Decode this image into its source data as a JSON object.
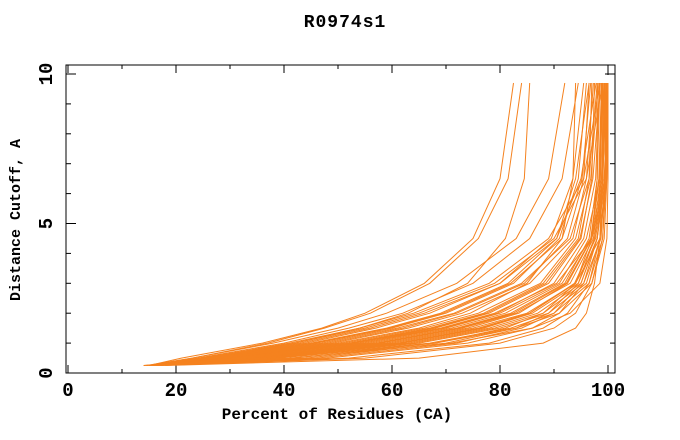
{
  "window": {
    "title": "R0974s1 accuracy plot"
  },
  "colors": {
    "background": "#FFFFFF",
    "line": "#F5821F",
    "axis": "#000000",
    "text": "#000000"
  },
  "chart_data": {
    "type": "line",
    "title": "R0974s1",
    "xlabel": "Percent of Residues (CA)",
    "ylabel": "Distance Cutoff, A",
    "xlim": [
      0,
      100
    ],
    "ylim": [
      0,
      10
    ],
    "grid": false,
    "legend": "none",
    "x_major_ticks": [
      0,
      20,
      40,
      60,
      80,
      100
    ],
    "x_minor_ticks": [
      10,
      30,
      50,
      70,
      90
    ],
    "x_tick_labels": [
      "0",
      "20",
      "40",
      "60",
      "80",
      "100"
    ],
    "y_major_ticks": [
      0,
      5,
      10
    ],
    "y_minor_ticks": [
      1,
      2,
      3,
      4,
      6,
      7,
      8,
      9
    ],
    "y_tick_labels": [
      "0",
      "5",
      "10"
    ],
    "y_tick_labels_rotated": true,
    "series_color": "#F5821F",
    "series_note": "each series = one model curve; x = percent of residues (CA) under the distance cutoff sampled at shared y_anchors (Angstroms)",
    "y_anchors": [
      0.25,
      0.5,
      1,
      1.5,
      2,
      3,
      4.5,
      6.5,
      9.7
    ],
    "series": [
      {
        "x": [
          15,
          21,
          36,
          47,
          55,
          66,
          75,
          80,
          82.5
        ]
      },
      {
        "x": [
          15,
          23,
          37,
          47.5,
          56,
          67,
          76,
          81.5,
          84
        ]
      },
      {
        "x": [
          16,
          26,
          42,
          54,
          63,
          74,
          81,
          84.5,
          85.5
        ]
      },
      {
        "x": [
          15,
          24,
          40,
          52,
          62,
          75,
          85.5,
          91.5,
          94.5
        ]
      },
      {
        "x": [
          15,
          27,
          46,
          60,
          70,
          82.5,
          91,
          94.5,
          96
        ]
      },
      {
        "x": [
          15,
          30,
          52,
          67,
          77,
          88,
          94.5,
          96.5,
          97
        ]
      },
      {
        "x": [
          15,
          29,
          50,
          65,
          74.5,
          85,
          91.5,
          93.5,
          94
        ]
      },
      {
        "x": [
          15,
          27.5,
          47,
          61,
          71.5,
          84,
          93,
          96.5,
          98
        ]
      },
      {
        "x": [
          15,
          25,
          41,
          54,
          64,
          78,
          89,
          95.5,
          98.5
        ]
      },
      {
        "x": [
          14.5,
          23,
          38,
          50,
          59,
          72,
          83,
          89,
          92
        ]
      },
      {
        "x": [
          15,
          26,
          44,
          57,
          67,
          80,
          89.5,
          93.5,
          95.5
        ]
      },
      {
        "x": [
          15,
          28,
          48,
          62,
          72,
          84.5,
          92.5,
          95.5,
          96.5
        ]
      },
      {
        "x": [
          16,
          31,
          53,
          68,
          78,
          89,
          95,
          97,
          97.5
        ]
      },
      {
        "x": [
          15,
          24.5,
          42,
          55,
          65,
          79,
          90,
          96,
          99
        ]
      },
      {
        "x": [
          15,
          26.5,
          45,
          59,
          69,
          81.5,
          90.5,
          94,
          96.5
        ]
      },
      {
        "x": [
          15,
          28.5,
          49,
          63,
          73,
          85.5,
          93.5,
          96,
          97.3
        ]
      },
      {
        "x": [
          15,
          25.5,
          43,
          56,
          66,
          80,
          90.5,
          95,
          97.8
        ]
      },
      {
        "x": [
          16,
          29.5,
          51,
          66,
          76,
          87.5,
          94,
          96.8,
          98.2
        ]
      },
      {
        "x": [
          15,
          27,
          45.5,
          59.5,
          69.5,
          82,
          91.5,
          95.2,
          96.8
        ]
      },
      {
        "x": [
          14,
          31.5,
          54,
          69.5,
          79.5,
          90,
          95.5,
          97.7,
          98.4
        ]
      },
      {
        "x": [
          15,
          35.5,
          61.5,
          76.5,
          85.5,
          93.8,
          97.7,
          99.1,
          99.4
        ]
      },
      {
        "x": [
          16,
          33,
          57.5,
          72.5,
          82.5,
          92.3,
          96.9,
          98.4,
          98.9
        ]
      },
      {
        "x": [
          15,
          30,
          52.5,
          67.5,
          77.5,
          88.5,
          94.8,
          97.2,
          98.6
        ]
      },
      {
        "x": [
          15,
          33,
          59,
          74,
          83.5,
          92.5,
          97,
          98,
          98
        ]
      },
      {
        "x": [
          15,
          37,
          65,
          80,
          89,
          96,
          98.5,
          99,
          99
        ]
      },
      {
        "x": [
          15,
          41,
          71,
          86,
          93,
          98.5,
          99.8,
          100,
          100
        ]
      },
      {
        "x": [
          15,
          34,
          60,
          75,
          85,
          94,
          98.5,
          99.5,
          99.5
        ]
      },
      {
        "x": [
          15,
          30.5,
          53,
          69,
          79,
          90.5,
          97,
          99.5,
          100
        ]
      },
      {
        "x": [
          16,
          35,
          62,
          77,
          86,
          94.5,
          98,
          99,
          99.5
        ]
      },
      {
        "x": [
          15,
          32,
          57,
          72,
          82,
          92,
          96.5,
          98,
          98.5
        ]
      },
      {
        "x": [
          14,
          36,
          63,
          78,
          87,
          95,
          98,
          99,
          99.3
        ]
      },
      {
        "x": [
          15,
          38,
          67,
          82,
          90,
          96.5,
          99,
          99.5,
          99.8
        ]
      },
      {
        "x": [
          15,
          31,
          55,
          70,
          80,
          91,
          96,
          98.5,
          99
        ]
      },
      {
        "x": [
          16,
          34.5,
          61,
          76,
          85.5,
          94,
          97.5,
          98.8,
          99.2
        ]
      },
      {
        "x": [
          15,
          39,
          68,
          83,
          91,
          97,
          99.3,
          99.8,
          100
        ]
      },
      {
        "x": [
          15,
          33.5,
          58,
          73,
          83,
          93,
          97.3,
          98.6,
          99
        ]
      },
      {
        "x": [
          14.5,
          36.5,
          64,
          79,
          88,
          95.5,
          98.7,
          99.4,
          99.7
        ]
      },
      {
        "x": [
          15,
          32.5,
          56,
          71,
          81,
          91.5,
          96.8,
          98.3,
          98.8
        ]
      },
      {
        "x": [
          17,
          55,
          80,
          90,
          94,
          97,
          99,
          99.7,
          100
        ]
      },
      {
        "x": [
          16,
          48,
          74,
          86,
          91,
          95.5,
          98,
          99.5,
          100
        ]
      },
      {
        "x": [
          16,
          44,
          70,
          83,
          89,
          94.5,
          97.5,
          99,
          99.8
        ]
      },
      {
        "x": [
          17,
          52,
          78,
          88,
          92.5,
          96.5,
          98.5,
          99.7,
          100
        ]
      },
      {
        "x": [
          16,
          46,
          72,
          84,
          90,
          95,
          98,
          99.3,
          100
        ]
      },
      {
        "x": [
          15,
          42,
          68,
          81,
          88,
          94,
          97,
          98.8,
          99.5
        ]
      },
      {
        "x": [
          18,
          65,
          88,
          94,
          96,
          97.5,
          98.5,
          99,
          99.7
        ]
      }
    ]
  }
}
